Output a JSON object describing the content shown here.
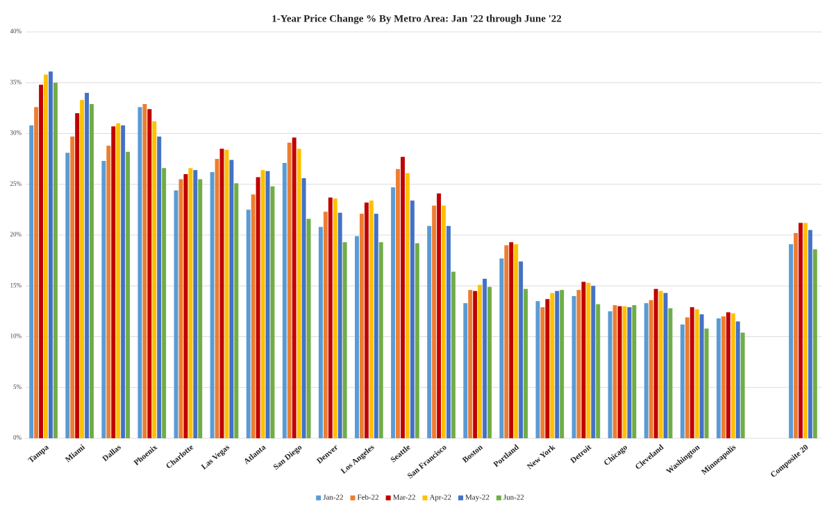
{
  "chart_data": {
    "type": "bar",
    "title": "1-Year Price Change % By Metro Area: Jan '22 through June '22",
    "categories": [
      "Tampa",
      "Miami",
      "Dallas",
      "Phoenix",
      "Charlotte",
      "Las Vegas",
      "Atlanta",
      "San Diego",
      "Denver",
      "Los Angeles",
      "Seattle",
      "San Francisco",
      "Boston",
      "Portland",
      "New York",
      "Detroit",
      "Chicago",
      "Cleveland",
      "Washington",
      "Minneapolis",
      null,
      "Composite 20"
    ],
    "series": [
      {
        "name": "Jan-22",
        "color": "#5b9bd5",
        "values": [
          30.8,
          28.1,
          27.3,
          32.6,
          24.4,
          26.2,
          22.5,
          27.1,
          20.8,
          19.9,
          24.7,
          20.9,
          13.3,
          17.7,
          13.5,
          14.0,
          12.5,
          13.3,
          11.2,
          11.8,
          null,
          19.1
        ]
      },
      {
        "name": "Feb-22",
        "color": "#ed7d31",
        "values": [
          32.6,
          29.7,
          28.8,
          32.9,
          25.5,
          27.5,
          24.0,
          29.1,
          22.3,
          22.1,
          26.5,
          22.9,
          14.6,
          19.0,
          12.9,
          14.6,
          13.1,
          13.6,
          11.9,
          12.0,
          null,
          20.2
        ]
      },
      {
        "name": "Mar-22",
        "color": "#c00000",
        "values": [
          34.8,
          32.0,
          30.7,
          32.4,
          26.0,
          28.5,
          25.7,
          29.6,
          23.7,
          23.2,
          27.7,
          24.1,
          14.5,
          19.3,
          13.7,
          15.4,
          13.0,
          14.7,
          12.9,
          12.4,
          null,
          21.2
        ]
      },
      {
        "name": "Apr-22",
        "color": "#ffc000",
        "values": [
          35.8,
          33.3,
          31.0,
          31.2,
          26.6,
          28.4,
          26.4,
          28.5,
          23.6,
          23.4,
          26.1,
          22.9,
          15.1,
          19.1,
          14.3,
          15.3,
          13.0,
          14.5,
          12.7,
          12.3,
          null,
          21.2
        ]
      },
      {
        "name": "May-22",
        "color": "#4472c4",
        "values": [
          36.1,
          34.0,
          30.8,
          29.7,
          26.4,
          27.4,
          26.3,
          25.6,
          22.2,
          22.1,
          23.4,
          20.9,
          15.7,
          17.4,
          14.5,
          15.0,
          12.9,
          14.3,
          12.2,
          11.5,
          null,
          20.5
        ]
      },
      {
        "name": "Jun-22",
        "color": "#70ad47",
        "values": [
          35.0,
          32.9,
          28.2,
          26.6,
          25.5,
          25.1,
          24.8,
          21.6,
          19.3,
          19.3,
          19.2,
          16.4,
          14.9,
          14.7,
          14.6,
          13.2,
          13.1,
          12.8,
          10.8,
          10.4,
          null,
          18.6
        ]
      }
    ],
    "ylim": [
      0,
      40
    ],
    "yticks": [
      {
        "value": 0,
        "label": "0%"
      },
      {
        "value": 5,
        "label": "5%"
      },
      {
        "value": 10,
        "label": "10%"
      },
      {
        "value": 15,
        "label": "15%"
      },
      {
        "value": 20,
        "label": "20%"
      },
      {
        "value": 25,
        "label": "25%"
      },
      {
        "value": 30,
        "label": "30%"
      },
      {
        "value": 35,
        "label": "35%"
      },
      {
        "value": 40,
        "label": "40%"
      }
    ],
    "grid": true,
    "legend": "bottom"
  }
}
